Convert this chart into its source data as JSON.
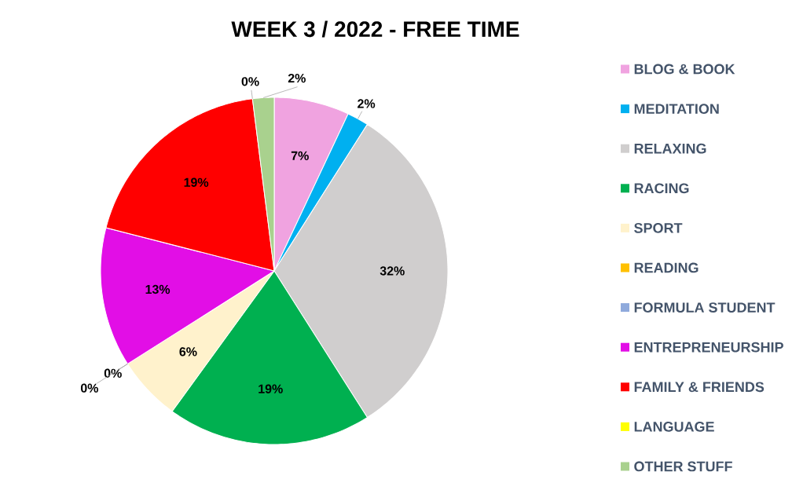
{
  "chart_data": {
    "type": "pie",
    "title": "WEEK 3 / 2022 - FREE TIME",
    "categories": [
      "BLOG & BOOK",
      "MEDITATION",
      "RELAXING",
      "RACING",
      "SPORT",
      "READING",
      "FORMULA STUDENT",
      "ENTREPRENEURSHIP",
      "FAMILY & FRIENDS",
      "LANGUAGE",
      "OTHER STUFF"
    ],
    "values": [
      7,
      2,
      32,
      19,
      6,
      0,
      0,
      13,
      19,
      0,
      2
    ],
    "value_labels": [
      "7%",
      "2%",
      "32%",
      "19%",
      "6%",
      "0%",
      "0%",
      "13%",
      "19%",
      "0%",
      "2%"
    ],
    "colors": [
      "#f0a3e0",
      "#00b0f0",
      "#d0cece",
      "#00b050",
      "#fff2cc",
      "#ffc000",
      "#8faadc",
      "#e20ee6",
      "#ff0000",
      "#ffff00",
      "#a9d18e"
    ],
    "legend": "right"
  }
}
